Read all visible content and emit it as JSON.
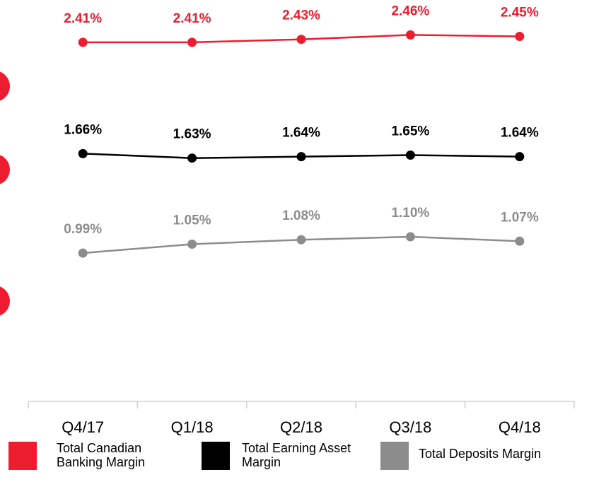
{
  "chart_data": {
    "type": "line",
    "categories": [
      "Q4/17",
      "Q1/18",
      "Q2/18",
      "Q3/18",
      "Q4/18"
    ],
    "series": [
      {
        "name": "Total Canadian Banking Margin",
        "color": "#ed1c2e",
        "values": [
          2.41,
          2.41,
          2.43,
          2.46,
          2.45
        ],
        "value_labels": [
          "2.41%",
          "2.41%",
          "2.43%",
          "2.46%",
          "2.45%"
        ]
      },
      {
        "name": "Total Earning Asset Margin",
        "color": "#000000",
        "values": [
          1.66,
          1.63,
          1.64,
          1.65,
          1.64
        ],
        "value_labels": [
          "1.66%",
          "1.63%",
          "1.64%",
          "1.65%",
          "1.64%"
        ]
      },
      {
        "name": "Total Deposits Margin",
        "color": "#8c8c8c",
        "values": [
          0.99,
          1.05,
          1.08,
          1.1,
          1.07
        ],
        "value_labels": [
          "0.99%",
          "1.05%",
          "1.08%",
          "1.10%",
          "1.07%"
        ]
      }
    ],
    "ylim": [
      0,
      2.7
    ]
  }
}
